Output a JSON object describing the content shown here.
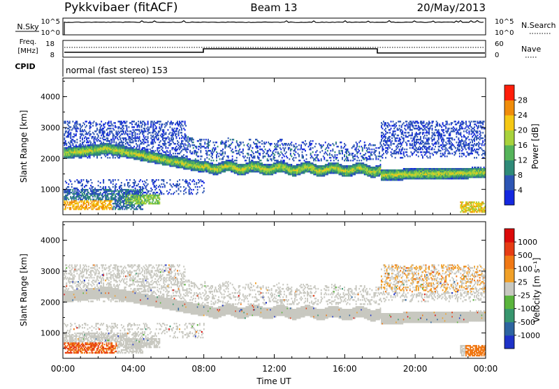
{
  "header": {
    "station": "Pykkvibaer (fitACF)",
    "beam": "Beam 13",
    "date": "20/May/2013"
  },
  "panels": {
    "nsky": {
      "left_label": "N.Sky",
      "left_ticks": [
        "10^5",
        "10^0"
      ],
      "right_label": "N.Search",
      "right_ticks": [
        "10^5",
        "10^0"
      ]
    },
    "freq": {
      "left_label_1": "Freq.",
      "left_label_2": "[MHz]",
      "left_ticks": [
        "18",
        "8"
      ],
      "right_label": "Nave",
      "right_ticks": [
        "60",
        "0"
      ]
    },
    "cpid": {
      "left_label": "CPID",
      "text": "normal (fast stereo) 153"
    }
  },
  "xaxis": {
    "label": "Time UT",
    "ticks": [
      "00:00",
      "04:00",
      "08:00",
      "12:00",
      "16:00",
      "20:00",
      "00:00"
    ]
  },
  "chart_data": [
    {
      "type": "heatmap",
      "name": "power",
      "ylabel": "Slant Range [km]",
      "yticks": [
        "1000",
        "2000",
        "3000",
        "4000"
      ],
      "ylim": [
        180,
        4600
      ],
      "xlim_hours": [
        0,
        24
      ],
      "colorbar": {
        "label": "Power [dB]",
        "ticks": [
          "4",
          "8",
          "12",
          "16",
          "20",
          "24",
          "28"
        ],
        "colors": [
          "#1428e0",
          "#2d55b4",
          "#2f8a78",
          "#55b45a",
          "#a8d23c",
          "#f5c814",
          "#f08c0a",
          "#ff1e0a"
        ]
      }
    },
    {
      "type": "heatmap",
      "name": "velocity",
      "ylabel": "Slant Range [km]",
      "yticks": [
        "1000",
        "2000",
        "3000",
        "4000"
      ],
      "ylim": [
        180,
        4600
      ],
      "xlim_hours": [
        0,
        24
      ],
      "colorbar": {
        "label": "Velocity [m s⁻¹]",
        "ticks": [
          "1000",
          "500",
          "100",
          "25",
          "-25",
          "-100",
          "-500",
          "-1000"
        ],
        "colors": [
          "#1e32c8",
          "#2d64a0",
          "#37966e",
          "#5ab43c",
          "#c8c8c0",
          "#f0a028",
          "#f07814",
          "#e63c14",
          "#dc0a0a"
        ]
      }
    }
  ]
}
